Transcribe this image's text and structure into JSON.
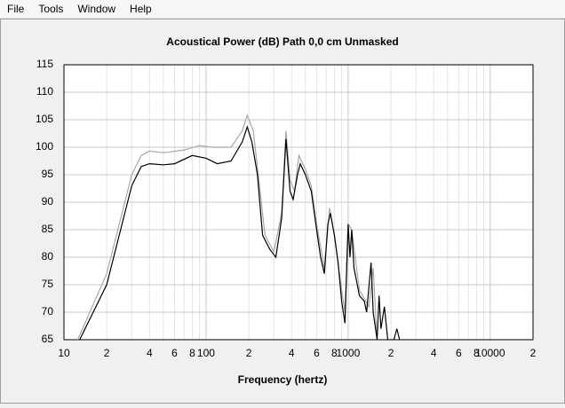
{
  "menu": [
    "File",
    "Tools",
    "Window",
    "Help"
  ],
  "chart_data": {
    "type": "line",
    "title": "Acoustical Power (dB)    Path 0,0 cm    Unmasked",
    "x_label": "Frequency (hertz)",
    "log_x": true,
    "grid": true,
    "xlim": [
      10,
      20000
    ],
    "ylim": [
      65,
      115
    ],
    "xticks": [
      10,
      {
        "value": 20,
        "label": "2"
      },
      {
        "value": 40,
        "label": "4"
      },
      {
        "value": 60,
        "label": "6"
      },
      {
        "value": 80,
        "label": "8"
      },
      100,
      {
        "value": 200,
        "label": "2"
      },
      {
        "value": 400,
        "label": "4"
      },
      {
        "value": 600,
        "label": "6"
      },
      {
        "value": 800,
        "label": "8"
      },
      1000,
      {
        "value": 2000,
        "label": "2"
      },
      {
        "value": 4000,
        "label": "4"
      },
      {
        "value": 6000,
        "label": "6"
      },
      {
        "value": 8000,
        "label": "8"
      },
      10000,
      {
        "value": 20000,
        "label": "2"
      }
    ],
    "xminorticks": [
      30,
      50,
      70,
      90,
      300,
      500,
      700,
      900,
      3000,
      5000,
      7000,
      9000
    ],
    "yticks": [
      65,
      70,
      75,
      80,
      85,
      90,
      95,
      100,
      105,
      110,
      115
    ],
    "series": [
      {
        "color": "#a8a8a8",
        "x": [
          12.5,
          20,
          30,
          35,
          40,
          50,
          70,
          90,
          110,
          150,
          180,
          195,
          215,
          240,
          260,
          300,
          340,
          365,
          390,
          420,
          450,
          500,
          550,
          600,
          680,
          740,
          800,
          900,
          950,
          1000,
          1060,
          1200,
          1400,
          1500,
          1600
        ],
        "values": [
          65,
          77,
          95,
          98.5,
          99.3,
          99,
          99.5,
          100.3,
          100,
          100,
          103,
          105.8,
          103,
          92,
          84,
          81,
          88,
          103,
          94,
          92,
          98.5,
          96,
          93,
          86,
          78,
          89,
          84,
          74,
          70,
          86,
          85,
          74,
          71,
          78,
          65
        ]
      },
      {
        "color": "#000000",
        "x": [
          12.9,
          20,
          30,
          35,
          40,
          50,
          60,
          80,
          100,
          120,
          150,
          180,
          195,
          210,
          230,
          250,
          280,
          310,
          340,
          365,
          390,
          410,
          440,
          460,
          500,
          550,
          600,
          640,
          680,
          720,
          750,
          800,
          850,
          900,
          950,
          1000,
          1030,
          1060,
          1100,
          1200,
          1300,
          1350,
          1450,
          1500,
          1600,
          1650,
          1700,
          1800,
          1900,
          2100,
          2200,
          2300
        ],
        "values": [
          65,
          75,
          93,
          96.5,
          97,
          96.8,
          97,
          98.5,
          98,
          97,
          97.5,
          101,
          103.7,
          101,
          95,
          84,
          81.5,
          80,
          87,
          101.5,
          92,
          90.5,
          95,
          97,
          95,
          92,
          85,
          80,
          77,
          86,
          88,
          84,
          79,
          72,
          68,
          86,
          80,
          85,
          78,
          73,
          72,
          70,
          79,
          70,
          65,
          73,
          67,
          71,
          65,
          65,
          67,
          65
        ]
      }
    ]
  }
}
